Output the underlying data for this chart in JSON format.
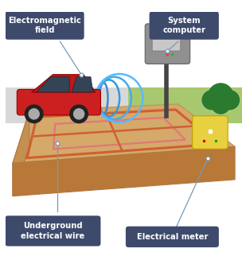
{
  "label_bg": "#3d4a6b",
  "label_text_color": "#ffffff",
  "road_color": "#d8d8d8",
  "grass_color": "#a8c870",
  "ground_top_color": "#d4a96a",
  "ground_left_color": "#c49050",
  "ground_front_color": "#b87838",
  "car_body_color": "#cc2020",
  "car_roof_color": "#bb1818",
  "car_window_color": "#334455",
  "wire_color_outer": "#d06030",
  "wire_color_inner": "#e07878",
  "em_colors": [
    "#4488cc",
    "#3399dd",
    "#44aaee",
    "#55bbff"
  ],
  "meter_color": "#e8d040",
  "computer_color": "#909090",
  "shrub_color": "#2a7a30",
  "connector_color": "#7799bb",
  "gfl": [
    0.03,
    0.36
  ],
  "gfr": [
    0.97,
    0.43
  ],
  "gbr": [
    0.73,
    0.61
  ],
  "gbl": [
    0.1,
    0.58
  ]
}
